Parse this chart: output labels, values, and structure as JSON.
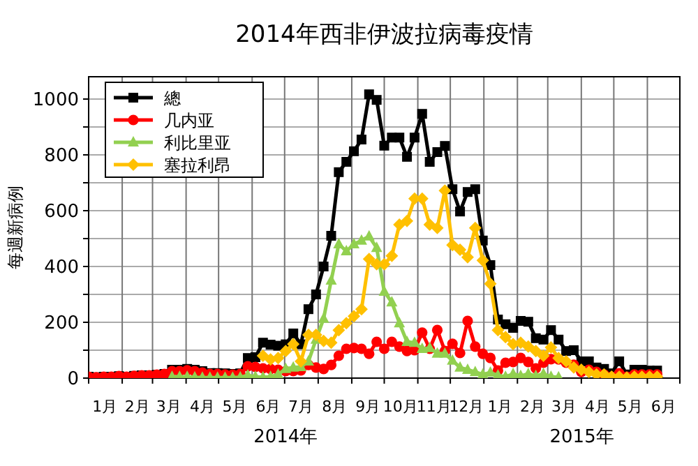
{
  "chart_data": {
    "type": "line",
    "title": "2014年西非伊波拉病毒疫情",
    "ylabel": "每週新病例",
    "annotations": [
      "2014年",
      "2015年"
    ],
    "x": [
      "2014-01-01",
      "2014-01-08",
      "2014-01-15",
      "2014-01-22",
      "2014-01-29",
      "2014-02-05",
      "2014-02-12",
      "2014-02-19",
      "2014-02-26",
      "2014-03-05",
      "2014-03-12",
      "2014-03-19",
      "2014-03-26",
      "2014-04-02",
      "2014-04-09",
      "2014-04-16",
      "2014-04-23",
      "2014-04-30",
      "2014-05-07",
      "2014-05-14",
      "2014-05-21",
      "2014-05-28",
      "2014-06-04",
      "2014-06-11",
      "2014-06-18",
      "2014-06-25",
      "2014-07-02",
      "2014-07-09",
      "2014-07-16",
      "2014-07-23",
      "2014-07-30",
      "2014-08-06",
      "2014-08-13",
      "2014-08-20",
      "2014-08-27",
      "2014-09-03",
      "2014-09-10",
      "2014-09-17",
      "2014-09-24",
      "2014-10-01",
      "2014-10-08",
      "2014-10-15",
      "2014-10-22",
      "2014-10-29",
      "2014-11-05",
      "2014-11-12",
      "2014-11-19",
      "2014-11-26",
      "2014-12-03",
      "2014-12-10",
      "2014-12-17",
      "2014-12-24",
      "2014-12-31",
      "2015-01-07",
      "2015-01-14",
      "2015-01-21",
      "2015-01-28",
      "2015-02-04",
      "2015-02-11",
      "2015-02-18",
      "2015-02-25",
      "2015-03-04",
      "2015-03-11",
      "2015-03-18",
      "2015-03-25",
      "2015-04-01",
      "2015-04-08",
      "2015-04-15",
      "2015-04-22",
      "2015-04-29",
      "2015-05-06",
      "2015-05-13",
      "2015-05-20",
      "2015-05-27",
      "2015-06-03",
      "2015-06-10"
    ],
    "series": [
      {
        "name": "總",
        "color": "#000000",
        "marker": "square",
        "values": [
          5,
          3,
          5,
          5,
          7,
          5,
          8,
          10,
          10,
          12,
          15,
          30,
          30,
          33,
          30,
          25,
          18,
          18,
          17,
          15,
          17,
          72,
          75,
          127,
          120,
          116,
          121,
          160,
          121,
          247,
          300,
          400,
          510,
          738,
          775,
          813,
          855,
          1017,
          997,
          833,
          862,
          862,
          793,
          862,
          947,
          775,
          810,
          832,
          677,
          597,
          667,
          677,
          493,
          405,
          210,
          193,
          180,
          205,
          202,
          143,
          138,
          172,
          138,
          97,
          100,
          60,
          60,
          38,
          33,
          17,
          60,
          13,
          30,
          30,
          27,
          27
        ]
      },
      {
        "name": "几内亚",
        "color": "#ff0000",
        "marker": "circle",
        "values": [
          5,
          3,
          5,
          5,
          7,
          5,
          8,
          10,
          10,
          12,
          15,
          25,
          25,
          28,
          25,
          20,
          15,
          15,
          13,
          12,
          15,
          42,
          40,
          35,
          33,
          30,
          25,
          25,
          28,
          47,
          38,
          33,
          47,
          80,
          105,
          108,
          105,
          87,
          130,
          105,
          130,
          113,
          97,
          100,
          163,
          105,
          172,
          97,
          123,
          90,
          205,
          113,
          87,
          72,
          27,
          55,
          58,
          72,
          58,
          35,
          55,
          68,
          67,
          55,
          48,
          22,
          30,
          22,
          13,
          5,
          17,
          5,
          13,
          13,
          13,
          13
        ]
      },
      {
        "name": "利比里亚",
        "color": "#92d050",
        "marker": "triangle",
        "values": [
          null,
          null,
          null,
          null,
          null,
          null,
          null,
          null,
          null,
          null,
          null,
          5,
          5,
          5,
          3,
          2,
          2,
          2,
          2,
          2,
          3,
          10,
          5,
          3,
          5,
          13,
          33,
          38,
          40,
          60,
          138,
          213,
          350,
          480,
          455,
          480,
          493,
          508,
          467,
          310,
          272,
          197,
          130,
          127,
          105,
          108,
          88,
          88,
          63,
          38,
          30,
          22,
          13,
          20,
          10,
          5,
          15,
          8,
          15,
          8,
          15,
          5,
          3,
          null,
          null,
          null,
          null,
          null,
          null,
          null,
          null,
          null,
          null,
          null,
          null,
          null
        ]
      },
      {
        "name": "塞拉利昂",
        "color": "#ffc000",
        "marker": "diamond",
        "values": [
          null,
          null,
          null,
          null,
          null,
          null,
          null,
          null,
          null,
          null,
          null,
          null,
          null,
          null,
          null,
          null,
          null,
          null,
          null,
          null,
          null,
          null,
          null,
          80,
          67,
          72,
          97,
          122,
          60,
          155,
          155,
          133,
          127,
          172,
          197,
          222,
          247,
          427,
          408,
          408,
          438,
          550,
          563,
          643,
          643,
          550,
          538,
          672,
          477,
          460,
          433,
          538,
          422,
          338,
          172,
          147,
          122,
          127,
          113,
          97,
          80,
          110,
          72,
          60,
          38,
          30,
          22,
          13,
          13,
          5,
          5,
          2,
          5,
          5,
          5,
          5
        ]
      }
    ],
    "xlim": [
      "2014-01-01",
      "2015-07-01"
    ],
    "xticks": [
      {
        "value": "2014-01-01",
        "label": null
      },
      {
        "value": "2014-01-16",
        "label": "1月"
      },
      {
        "value": "2014-02-01",
        "label": null
      },
      {
        "value": "2014-02-15",
        "label": "2月"
      },
      {
        "value": "2014-03-01",
        "label": null
      },
      {
        "value": "2014-03-16",
        "label": "3月"
      },
      {
        "value": "2014-04-01",
        "label": null
      },
      {
        "value": "2014-04-16",
        "label": "4月"
      },
      {
        "value": "2014-05-01",
        "label": null
      },
      {
        "value": "2014-05-16",
        "label": "5月"
      },
      {
        "value": "2014-06-01",
        "label": null
      },
      {
        "value": "2014-06-16",
        "label": "6月"
      },
      {
        "value": "2014-07-01",
        "label": null
      },
      {
        "value": "2014-07-16",
        "label": "7月"
      },
      {
        "value": "2014-08-01",
        "label": null
      },
      {
        "value": "2014-08-16",
        "label": "8月"
      },
      {
        "value": "2014-09-01",
        "label": null
      },
      {
        "value": "2014-09-16",
        "label": "9月"
      },
      {
        "value": "2014-10-01",
        "label": null
      },
      {
        "value": "2014-10-16",
        "label": "10月"
      },
      {
        "value": "2014-11-01",
        "label": null
      },
      {
        "value": "2014-11-16",
        "label": "11月"
      },
      {
        "value": "2014-12-01",
        "label": null
      },
      {
        "value": "2014-12-16",
        "label": "12月"
      },
      {
        "value": "2015-01-01",
        "label": null
      },
      {
        "value": "2015-01-16",
        "label": "1月"
      },
      {
        "value": "2015-02-01",
        "label": null
      },
      {
        "value": "2015-02-15",
        "label": "2月"
      },
      {
        "value": "2015-03-01",
        "label": null
      },
      {
        "value": "2015-03-16",
        "label": "3月"
      },
      {
        "value": "2015-04-01",
        "label": null
      },
      {
        "value": "2015-04-16",
        "label": "4月"
      },
      {
        "value": "2015-05-01",
        "label": null
      },
      {
        "value": "2015-05-16",
        "label": "5月"
      },
      {
        "value": "2015-06-01",
        "label": null
      },
      {
        "value": "2015-06-16",
        "label": "6月"
      },
      {
        "value": "2015-07-01",
        "label": null
      }
    ],
    "ylim": [
      0,
      1080
    ],
    "yticks": [
      0,
      {
        "value": 100,
        "label": null
      },
      200,
      {
        "value": 300,
        "label": null
      },
      400,
      {
        "value": 500,
        "label": null
      },
      600,
      {
        "value": 700,
        "label": null
      },
      800,
      {
        "value": 900,
        "label": null
      },
      1000
    ],
    "grid": true,
    "legend": "top left",
    "line_style": "solid"
  }
}
